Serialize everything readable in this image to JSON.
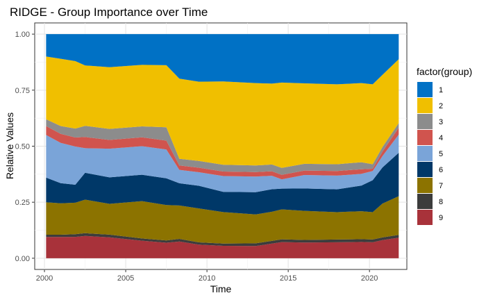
{
  "chart_data": {
    "type": "area",
    "stacked": "normalized",
    "title": "RIDGE - Group Importance over Time",
    "xlabel": "Time",
    "ylabel": "Relative Values",
    "xlim": [
      1999.4,
      2022.3
    ],
    "ylim": [
      -0.05,
      1.05
    ],
    "x_ticks": [
      2000,
      2005,
      2010,
      2015,
      2020
    ],
    "x_tick_labels": [
      "2000",
      "2005",
      "2010",
      "2015",
      "2020"
    ],
    "y_ticks": [
      0,
      0.25,
      0.5,
      0.75,
      1
    ],
    "y_tick_labels": [
      "0.00",
      "0.25",
      "0.50",
      "0.75",
      "1.00"
    ],
    "grid": true,
    "legend_title": "factor(group)",
    "legend_position": "right",
    "x": [
      2000.1,
      2001.0,
      2001.9,
      2002.5,
      2004.0,
      2006.0,
      2007.5,
      2008.3,
      2009.5,
      2011.0,
      2013.0,
      2014.0,
      2014.6,
      2016.0,
      2018.0,
      2019.5,
      2020.2,
      2020.8,
      2021.8
    ],
    "series": [
      {
        "name": "9",
        "color": "#a8323a",
        "values": [
          0.095,
          0.095,
          0.095,
          0.1,
          0.095,
          0.08,
          0.07,
          0.075,
          0.06,
          0.055,
          0.055,
          0.065,
          0.07,
          0.07,
          0.07,
          0.07,
          0.07,
          0.08,
          0.09
        ]
      },
      {
        "name": "8",
        "color": "#3c3c3c",
        "values": [
          0.01,
          0.01,
          0.012,
          0.012,
          0.012,
          0.01,
          0.01,
          0.012,
          0.01,
          0.01,
          0.012,
          0.012,
          0.012,
          0.012,
          0.012,
          0.012,
          0.012,
          0.012,
          0.012
        ]
      },
      {
        "name": "7",
        "color": "#8c7300",
        "values": [
          0.145,
          0.14,
          0.14,
          0.15,
          0.14,
          0.17,
          0.16,
          0.15,
          0.15,
          0.14,
          0.13,
          0.13,
          0.13,
          0.13,
          0.12,
          0.12,
          0.12,
          0.15,
          0.17
        ]
      },
      {
        "name": "6",
        "color": "#003868",
        "values": [
          0.11,
          0.09,
          0.08,
          0.12,
          0.12,
          0.12,
          0.12,
          0.1,
          0.1,
          0.09,
          0.1,
          0.1,
          0.09,
          0.1,
          0.1,
          0.11,
          0.14,
          0.16,
          0.19
        ]
      },
      {
        "name": "5",
        "color": "#7aa4d8",
        "values": [
          0.19,
          0.18,
          0.17,
          0.11,
          0.13,
          0.13,
          0.13,
          0.06,
          0.06,
          0.07,
          0.07,
          0.06,
          0.04,
          0.06,
          0.06,
          0.05,
          0.04,
          0.05,
          0.08
        ]
      },
      {
        "name": "4",
        "color": "#d0544e",
        "values": [
          0.04,
          0.04,
          0.04,
          0.05,
          0.04,
          0.04,
          0.04,
          0.02,
          0.02,
          0.02,
          0.02,
          0.02,
          0.02,
          0.02,
          0.02,
          0.02,
          0.01,
          0.02,
          0.03
        ]
      },
      {
        "name": "3",
        "color": "#8c8c8c",
        "values": [
          0.03,
          0.035,
          0.04,
          0.05,
          0.05,
          0.05,
          0.06,
          0.03,
          0.03,
          0.03,
          0.03,
          0.03,
          0.03,
          0.03,
          0.03,
          0.03,
          0.02,
          0.02,
          0.02
        ]
      },
      {
        "name": "2",
        "color": "#f0bf00",
        "values": [
          0.28,
          0.3,
          0.3,
          0.27,
          0.28,
          0.28,
          0.28,
          0.36,
          0.35,
          0.37,
          0.37,
          0.36,
          0.37,
          0.36,
          0.35,
          0.34,
          0.35,
          0.32,
          0.28
        ]
      },
      {
        "name": "1",
        "color": "#0071c5",
        "values": [
          0.1,
          0.11,
          0.12,
          0.14,
          0.15,
          0.14,
          0.14,
          0.2,
          0.21,
          0.21,
          0.22,
          0.22,
          0.21,
          0.22,
          0.22,
          0.21,
          0.22,
          0.18,
          0.11
        ]
      }
    ]
  }
}
